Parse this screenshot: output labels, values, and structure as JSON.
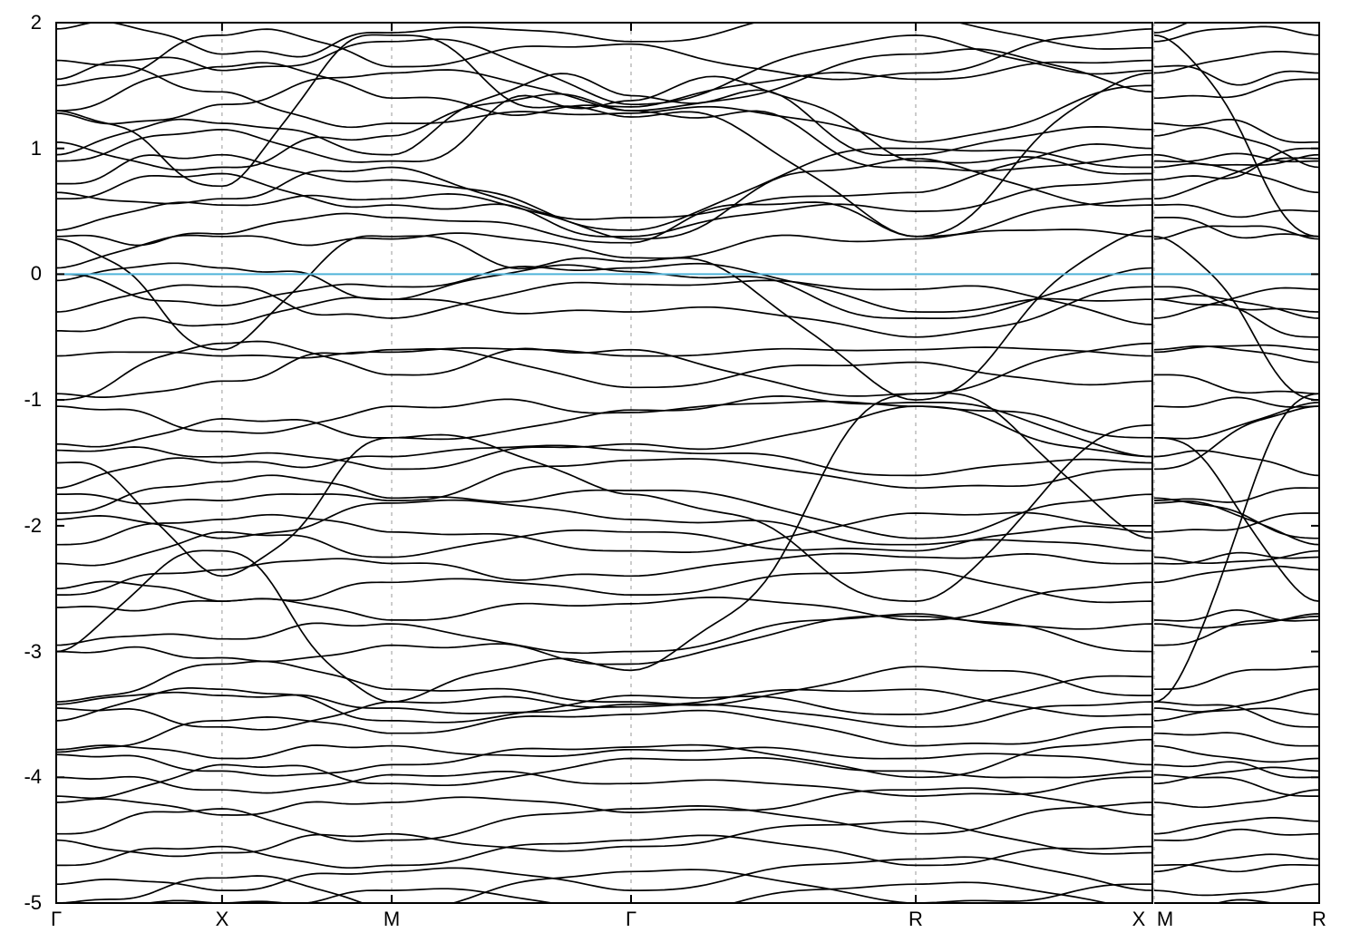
{
  "chart_data": {
    "type": "line",
    "subtype": "band-structure",
    "title": "",
    "xlabel": "",
    "ylabel": "",
    "ylim": [
      -5,
      2
    ],
    "yticks": [
      2,
      1,
      0,
      -1,
      -2,
      -3,
      -4,
      -5
    ],
    "ytick_labels": [
      "2",
      "1",
      "0",
      "-1",
      "-2",
      "-3",
      "-4",
      "-5"
    ],
    "grid": {
      "vertical_dashed": true,
      "color": "#999999"
    },
    "zero_line": {
      "y": 0,
      "color": "#4fb3d9"
    },
    "band_color": "#000000",
    "axis_color": "#000000",
    "background": "#ffffff",
    "panels": [
      {
        "name": "main",
        "kpath": [
          "Γ",
          "X",
          "M",
          "Γ",
          "R",
          "X"
        ],
        "kpos": [
          0,
          0.1513,
          0.306,
          0.5244,
          0.7841,
          1
        ]
      },
      {
        "name": "mr",
        "kpath": [
          "M",
          "R"
        ],
        "kpos": [
          0,
          1
        ]
      }
    ],
    "bands": [
      {
        "m": [
          1.95,
          1.75,
          1.92,
          1.85,
          2.05,
          1.8
        ],
        "b": [
          0.1,
          -0.1,
          0.06,
          0.08,
          -0.05
        ],
        "p": 0.1
      },
      {
        "m": [
          1.5,
          1.9,
          1.65,
          1.83,
          1.6,
          1.95
        ],
        "b": [
          -0.08,
          0.1,
          0.06,
          -0.1,
          0.06
        ],
        "p": -0.12
      },
      {
        "m": [
          1.55,
          1.62,
          1.85,
          1.35,
          1.9,
          1.62
        ],
        "b": [
          0.12,
          -0.06,
          0.1,
          0.06,
          -0.08
        ],
        "p": 0.08
      },
      {
        "m": [
          1.3,
          1.65,
          1.4,
          1.33,
          1.55,
          1.7
        ],
        "b": [
          0.05,
          0.08,
          -0.1,
          0.1,
          0.05
        ],
        "p": -0.06
      },
      {
        "m": [
          1.28,
          1.35,
          1.6,
          1.3,
          1.75,
          1.45
        ],
        "b": [
          -0.1,
          0.06,
          0.08,
          -0.06,
          0.1
        ],
        "p": 0.05
      },
      {
        "m": [
          1.7,
          1.45,
          1.2,
          1.28,
          1.05,
          1.5
        ],
        "b": [
          0.06,
          -0.08,
          0.05,
          0.1,
          -0.05
        ],
        "p": 0.1
      },
      {
        "m": [
          0.95,
          1.2,
          0.95,
          1.42,
          0.95,
          1.15
        ],
        "b": [
          0.08,
          0.05,
          0.28,
          0.26,
          0.06
        ],
        "p": -0.08
      },
      {
        "m": [
          0.9,
          1.15,
          0.9,
          1.38,
          0.9,
          0.8
        ],
        "b": [
          0.05,
          -0.05,
          0.26,
          0.3,
          0.08
        ],
        "p": 0.06
      },
      {
        "m": [
          1.05,
          0.85,
          1.1,
          1.3,
          0.85,
          0.95
        ],
        "b": [
          -0.06,
          0.1,
          0.18,
          0.2,
          -0.05
        ],
        "p": 0.12
      },
      {
        "m": [
          0.72,
          0.95,
          0.75,
          0.35,
          1.0,
          0.85
        ],
        "b": [
          0.1,
          -0.05,
          0.06,
          0.08,
          0.05
        ],
        "p": -0.1
      },
      {
        "m": [
          0.65,
          0.6,
          0.85,
          0.45,
          0.65,
          1.0
        ],
        "b": [
          -0.05,
          0.08,
          -0.08,
          0.05,
          0.1
        ],
        "p": 0.07
      },
      {
        "m": [
          0.6,
          0.8,
          0.55,
          0.3,
          0.5,
          0.75
        ],
        "b": [
          0.07,
          -0.06,
          0.12,
          0.1,
          0.05
        ],
        "p": -0.07
      },
      {
        "m": [
          0.35,
          0.55,
          0.6,
          0.28,
          0.92,
          0.55
        ],
        "b": [
          0.06,
          0.05,
          0.1,
          0.15,
          -0.06
        ],
        "p": 0.05
      },
      {
        "m": [
          0.3,
          0.32,
          0.45,
          0.25,
          0.3,
          0.6
        ],
        "b": [
          -0.08,
          0.06,
          0.05,
          0.28,
          0.05
        ],
        "p": -0.08
      },
      {
        "m": [
          0.05,
          0.3,
          0.28,
          0.13,
          0.28,
          0.3
        ],
        "b": [
          0.05,
          -0.06,
          0.08,
          0.1,
          0.06
        ],
        "p": 0.1
      },
      {
        "m": [
          0.28,
          -0.6,
          0.3,
          0.1,
          -1.0,
          0.35
        ],
        "b": [
          0.1,
          0.12,
          -0.15,
          0.2,
          0.1
        ],
        "p": 0.1
      },
      {
        "m": [
          -0.05,
          0.05,
          -0.2,
          0.02,
          -0.35,
          0.05
        ],
        "b": [
          0.06,
          0.08,
          0.1,
          0.12,
          -0.05
        ],
        "p": 0.06
      },
      {
        "m": [
          0.0,
          -0.25,
          -0.1,
          0.05,
          -0.3,
          -0.2
        ],
        "b": [
          -0.06,
          0.05,
          0.08,
          0.1,
          0.05
        ],
        "p": -0.07
      },
      {
        "m": [
          -0.3,
          -0.1,
          -0.35,
          -0.08,
          -0.12,
          -0.4
        ],
        "b": [
          0.05,
          -0.08,
          0.06,
          0.05,
          0.08
        ],
        "p": 0.05
      },
      {
        "m": [
          -0.45,
          -0.4,
          -0.2,
          -0.3,
          -0.5,
          -0.1
        ],
        "b": [
          0.08,
          0.05,
          -0.06,
          0.08,
          -0.05
        ],
        "p": 0.08
      },
      {
        "m": [
          -0.65,
          -0.65,
          -0.62,
          -0.65,
          -0.6,
          -0.65
        ],
        "b": [
          0.03,
          -0.03,
          0.04,
          0.03,
          0.03
        ],
        "p": 0.04
      },
      {
        "m": [
          -1.0,
          -0.55,
          -0.8,
          -0.6,
          -0.95,
          -0.55
        ],
        "b": [
          0.05,
          0.06,
          0.1,
          -0.08,
          0.05
        ],
        "p": -0.06
      },
      {
        "m": [
          -0.95,
          -0.85,
          -0.6,
          -0.9,
          -0.7,
          -0.85
        ],
        "b": [
          -0.05,
          0.08,
          0.05,
          0.06,
          -0.06
        ],
        "p": 0.05
      },
      {
        "m": [
          -1.05,
          -1.25,
          -1.05,
          -1.1,
          -1.05,
          -1.3
        ],
        "b": [
          0.06,
          -0.05,
          0.08,
          0.05,
          0.06
        ],
        "p": 0.07
      },
      {
        "m": [
          -1.35,
          -1.15,
          -1.3,
          -1.08,
          -1.02,
          -1.45
        ],
        "b": [
          -0.06,
          0.06,
          -0.05,
          0.08,
          0.05
        ],
        "p": -0.05
      },
      {
        "m": [
          -1.4,
          -1.45,
          -1.55,
          -1.35,
          -1.05,
          -1.45
        ],
        "b": [
          0.05,
          0.05,
          0.06,
          -0.1,
          -0.06
        ],
        "p": 0.06
      },
      {
        "m": [
          -1.7,
          -1.5,
          -1.45,
          -1.4,
          -1.6,
          -1.5
        ],
        "b": [
          0.08,
          -0.06,
          0.05,
          0.06,
          0.05
        ],
        "p": 0.08
      },
      {
        "m": [
          -1.75,
          -1.8,
          -1.8,
          -1.48,
          -1.7,
          -1.55
        ],
        "b": [
          -0.05,
          0.05,
          0.08,
          0.05,
          -0.05
        ],
        "p": -0.06
      },
      {
        "m": [
          -1.5,
          -2.4,
          -1.3,
          -1.75,
          -2.6,
          -1.2
        ],
        "b": [
          0.12,
          -0.1,
          0.1,
          0.15,
          0.08
        ],
        "p": 0.1
      },
      {
        "m": [
          -1.9,
          -1.65,
          -1.78,
          -1.72,
          -2.1,
          -1.75
        ],
        "b": [
          0.05,
          0.08,
          -0.06,
          0.05,
          0.06
        ],
        "p": 0.05
      },
      {
        "m": [
          -1.95,
          -2.1,
          -1.82,
          -1.95,
          -2.15,
          -2.2
        ],
        "b": [
          0.06,
          -0.05,
          0.05,
          0.08,
          0.05
        ],
        "p": 0.07
      },
      {
        "m": [
          -2.15,
          -1.95,
          -2.05,
          -2.2,
          -1.9,
          -2.0
        ],
        "b": [
          0.05,
          0.06,
          0.05,
          -0.06,
          0.05
        ],
        "p": -0.05
      },
      {
        "m": [
          -2.3,
          -2.05,
          -2.25,
          -2.05,
          -2.2,
          -2.05
        ],
        "b": [
          -0.06,
          0.06,
          0.05,
          -0.06,
          0.08
        ],
        "p": -0.06
      },
      {
        "m": [
          -2.55,
          -2.35,
          -2.3,
          -2.4,
          -2.25,
          -2.3
        ],
        "b": [
          0.05,
          0.05,
          -0.08,
          0.06,
          0.05
        ],
        "p": 0.06
      },
      {
        "m": [
          -2.5,
          -2.6,
          -2.45,
          -2.55,
          -2.35,
          -2.6
        ],
        "b": [
          0.08,
          -0.06,
          0.05,
          0.05,
          -0.05
        ],
        "p": 0.05
      },
      {
        "m": [
          -2.65,
          -2.6,
          -2.75,
          -2.62,
          -2.75,
          -2.45
        ],
        "b": [
          -0.05,
          0.05,
          0.06,
          0.08,
          0.05
        ],
        "p": 0.08
      },
      {
        "m": [
          -2.95,
          -2.9,
          -2.78,
          -3.0,
          -2.7,
          -2.78
        ],
        "b": [
          0.05,
          0.06,
          -0.05,
          0.06,
          -0.06
        ],
        "p": -0.05
      },
      {
        "m": [
          -3.0,
          -3.05,
          -2.95,
          -3.1,
          -2.72,
          -3.0
        ],
        "b": [
          0.06,
          -0.05,
          0.08,
          0.05,
          0.05
        ],
        "p": 0.06
      },
      {
        "m": [
          -3.0,
          -2.2,
          -3.4,
          -3.15,
          -0.95,
          -2.1
        ],
        "b": [
          0.1,
          -0.1,
          0.15,
          -0.3,
          0.15
        ],
        "p": 0.12
      },
      {
        "m": [
          -3.4,
          -3.1,
          -3.3,
          -3.4,
          -3.12,
          -3.35
        ],
        "b": [
          -0.05,
          0.06,
          0.05,
          -0.08,
          0.06
        ],
        "p": 0.05
      },
      {
        "m": [
          -3.42,
          -3.35,
          -3.45,
          -3.42,
          -3.3,
          -3.5
        ],
        "b": [
          0.04,
          0.05,
          -0.05,
          0.05,
          -0.05
        ],
        "p": -0.06
      },
      {
        "m": [
          -3.45,
          -3.6,
          -3.4,
          -3.44,
          -3.6,
          -3.4
        ],
        "b": [
          0.06,
          -0.06,
          0.06,
          0.05,
          0.05
        ],
        "p": 0.06
      },
      {
        "m": [
          -3.55,
          -3.3,
          -3.55,
          -3.35,
          -3.5,
          -3.2
        ],
        "b": [
          0.05,
          0.06,
          -0.05,
          0.06,
          0.05
        ],
        "p": 0.06
      },
      {
        "m": [
          -3.8,
          -3.55,
          -3.65,
          -3.5,
          -3.75,
          -3.6
        ],
        "b": [
          -0.05,
          0.05,
          0.05,
          0.08,
          -0.05
        ],
        "p": 0.05
      },
      {
        "m": [
          -3.78,
          -3.85,
          -3.75,
          -3.78,
          -3.85,
          -3.9
        ],
        "b": [
          0.05,
          0.05,
          -0.06,
          0.05,
          0.05
        ],
        "p": -0.05
      },
      {
        "m": [
          -3.82,
          -3.95,
          -3.9,
          -3.76,
          -4.0,
          -3.7
        ],
        "b": [
          0.05,
          -0.05,
          0.05,
          0.06,
          0.06
        ],
        "p": 0.07
      },
      {
        "m": [
          -4.15,
          -3.9,
          -4.05,
          -3.85,
          -3.95,
          -3.95
        ],
        "b": [
          -0.06,
          0.06,
          -0.05,
          0.05,
          -0.05
        ],
        "p": 0.05
      },
      {
        "m": [
          -4.0,
          -4.1,
          -3.98,
          -4.05,
          -4.15,
          -4.0
        ],
        "b": [
          0.05,
          -0.05,
          0.06,
          0.05,
          -0.05
        ],
        "p": 0.05
      },
      {
        "m": [
          -4.2,
          -4.3,
          -4.2,
          -4.28,
          -4.1,
          -4.3
        ],
        "b": [
          0.05,
          0.05,
          0.06,
          -0.06,
          0.05
        ],
        "p": -0.06
      },
      {
        "m": [
          -4.45,
          -4.25,
          -4.5,
          -4.25,
          -4.45,
          -4.2
        ],
        "b": [
          0.06,
          -0.05,
          0.05,
          0.06,
          0.05
        ],
        "p": 0.06
      },
      {
        "m": [
          -4.5,
          -4.6,
          -4.45,
          -4.55,
          -4.35,
          -4.6
        ],
        "b": [
          -0.05,
          0.06,
          -0.06,
          0.05,
          -0.05
        ],
        "p": 0.05
      },
      {
        "m": [
          -4.7,
          -4.55,
          -4.7,
          -4.5,
          -4.7,
          -4.55
        ],
        "b": [
          0.05,
          -0.05,
          0.05,
          0.08,
          0.05
        ],
        "p": -0.05
      },
      {
        "m": [
          -4.85,
          -4.9,
          -4.75,
          -4.9,
          -4.65,
          -4.9
        ],
        "b": [
          0.05,
          0.05,
          0.06,
          0.05,
          0.06
        ],
        "p": 0.06
      },
      {
        "m": [
          -5.0,
          -4.8,
          -5.05,
          -4.75,
          -5.0,
          -4.85
        ],
        "b": [
          -0.05,
          0.06,
          0.05,
          0.06,
          -0.05
        ],
        "p": 0.05
      },
      {
        "m": [
          -5.1,
          -5.0,
          -4.9,
          -5.1,
          -4.85,
          -5.05
        ],
        "b": [
          0.04,
          -0.05,
          0.05,
          0.05,
          0.05
        ],
        "p": -0.05
      },
      {
        "m": [
          1.3,
          0.7,
          1.9,
          1.25,
          0.3,
          1.6
        ],
        "b": [
          0.1,
          0.15,
          -0.2,
          0.2,
          0.1
        ],
        "p": 0.1
      }
    ]
  }
}
